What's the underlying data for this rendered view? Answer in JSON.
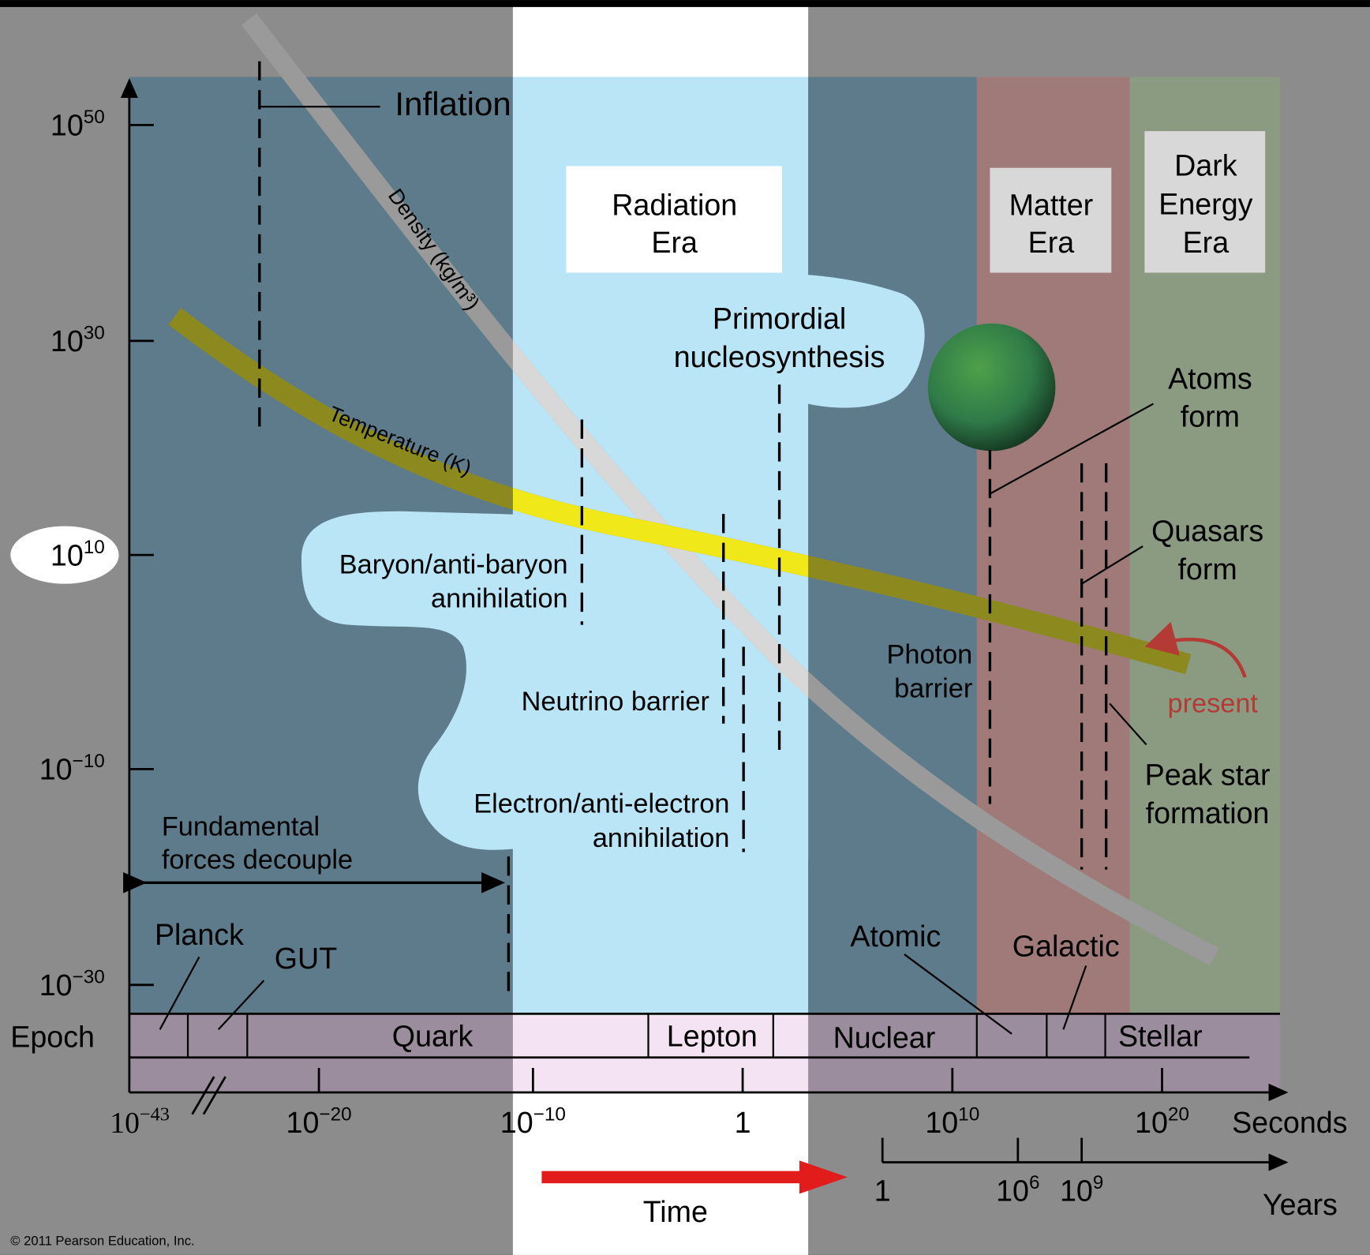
{
  "y_axis": {
    "ticks": [
      {
        "base": "10",
        "exponent": "50"
      },
      {
        "base": "10",
        "exponent": "30"
      },
      {
        "base": "10",
        "exponent": "10"
      },
      {
        "base": "10",
        "exponent": "−10"
      },
      {
        "base": "10",
        "exponent": "−30"
      }
    ]
  },
  "x_axis": {
    "ticks": [
      {
        "base": "10",
        "exponent": "−43"
      },
      {
        "base": "10",
        "exponent": "−20"
      },
      {
        "base": "10",
        "exponent": "−10"
      },
      {
        "base": "1"
      },
      {
        "base": "10",
        "exponent": "10"
      },
      {
        "base": "10",
        "exponent": "20"
      }
    ],
    "unit": "Seconds"
  },
  "years_axis": {
    "ticks": [
      {
        "base": "1"
      },
      {
        "base": "10",
        "exponent": "6"
      },
      {
        "base": "10",
        "exponent": "9"
      }
    ],
    "unit": "Years"
  },
  "eras": [
    {
      "lines": [
        "Radiation",
        "Era"
      ]
    },
    {
      "lines": [
        "Matter",
        "Era"
      ]
    },
    {
      "lines": [
        "Dark",
        "Energy",
        "Era"
      ]
    }
  ],
  "curves": {
    "density": "Density (kg/m³)",
    "temperature": "Temperature (K)"
  },
  "events": {
    "inflation": {
      "lines": [
        "Inflation"
      ]
    },
    "nucleosynthesis": {
      "lines": [
        "Primordial",
        "nucleosynthesis"
      ]
    },
    "atoms": {
      "lines": [
        "Atoms",
        "form"
      ]
    },
    "baryon": {
      "lines": [
        "Baryon/anti-baryon",
        "annihilation"
      ]
    },
    "quasars": {
      "lines": [
        "Quasars",
        "form"
      ]
    },
    "present": {
      "lines": [
        "present"
      ]
    },
    "photon": {
      "lines": [
        "Photon",
        "barrier"
      ]
    },
    "neutrino": {
      "lines": [
        "Neutrino barrier"
      ]
    },
    "peak_star": {
      "lines": [
        "Peak star",
        "formation"
      ]
    },
    "electron": {
      "lines": [
        "Electron/anti-electron",
        "annihilation"
      ]
    },
    "forces": {
      "lines": [
        "Fundamental",
        "forces decouple"
      ]
    }
  },
  "epochs": {
    "label": "Epoch",
    "names": [
      "Planck",
      "GUT",
      "Quark",
      "Lepton",
      "Nuclear",
      "Atomic",
      "Galactic",
      "Stellar"
    ]
  },
  "time": "Time",
  "copyright": "© 2011 Pearson Education, Inc."
}
